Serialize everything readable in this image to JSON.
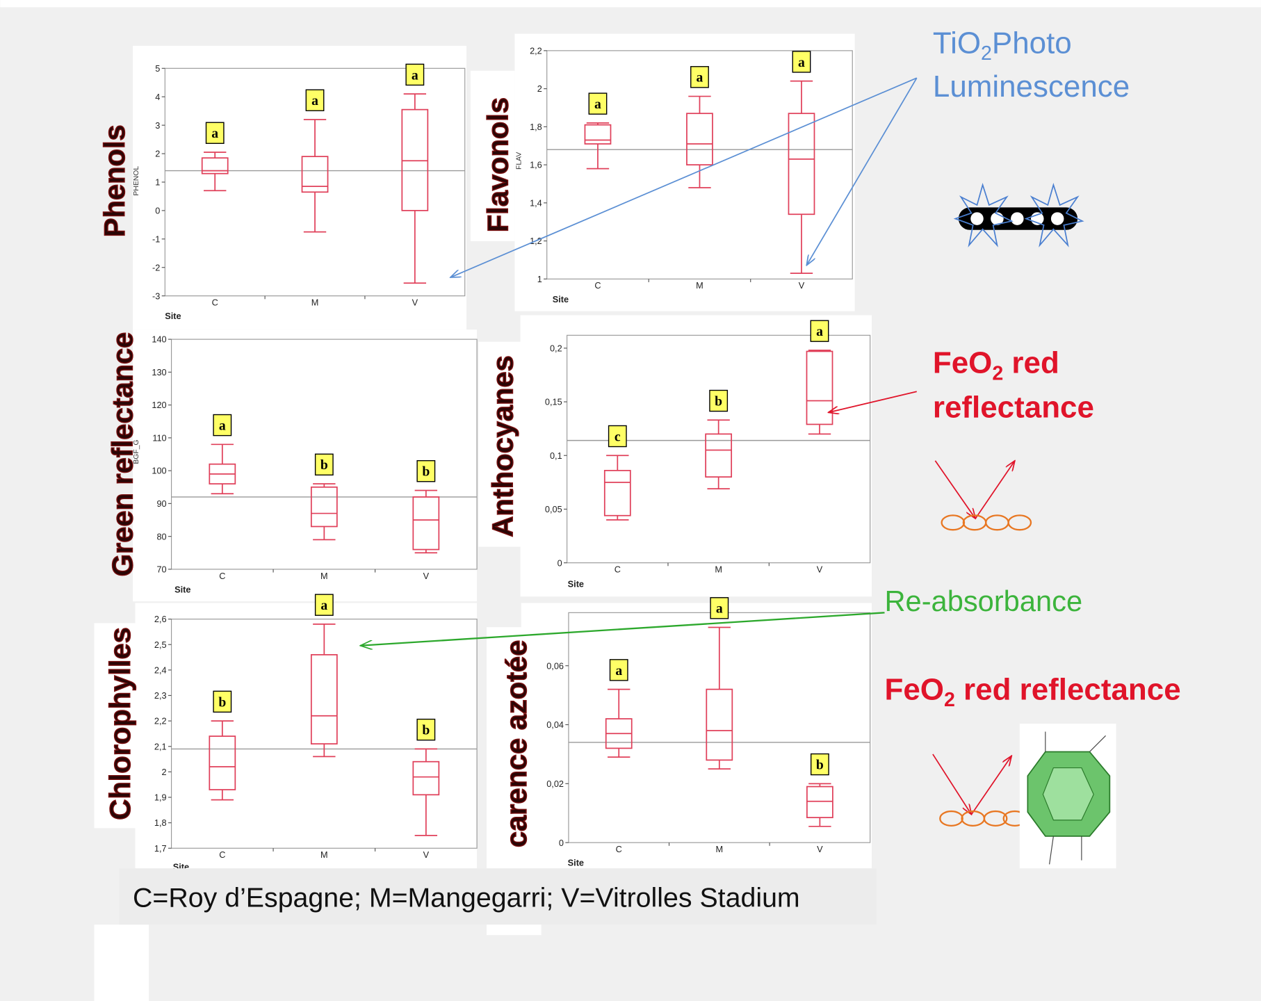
{
  "chart_data": [
    {
      "type": "box",
      "title": "Phenols",
      "y_label": "PHENOL",
      "x_label": "Site",
      "categories": [
        "C",
        "M",
        "V"
      ],
      "boxes": [
        {
          "min": 0.7,
          "q1": 1.3,
          "median": 1.4,
          "q3": 1.85,
          "max": 2.05
        },
        {
          "min": -0.75,
          "q1": 0.65,
          "median": 0.85,
          "q3": 1.9,
          "max": 3.2
        },
        {
          "min": -2.55,
          "q1": 0,
          "median": 1.75,
          "q3": 3.55,
          "max": 4.1
        }
      ],
      "groups": [
        "a",
        "a",
        "a"
      ],
      "mean": 1.4,
      "color": "#e0405a",
      "ylim": [
        -3,
        5
      ],
      "yticks": [
        -3,
        -2,
        -1,
        0,
        1,
        2,
        3,
        4,
        5
      ]
    },
    {
      "type": "box",
      "title": "Flavonols",
      "y_label": "FLAV",
      "x_label": "Site",
      "categories": [
        "C",
        "M",
        "V"
      ],
      "boxes": [
        {
          "min": 1.58,
          "q1": 1.71,
          "median": 1.73,
          "q3": 1.81,
          "max": 1.82
        },
        {
          "min": 1.48,
          "q1": 1.6,
          "median": 1.71,
          "q3": 1.87,
          "max": 1.96
        },
        {
          "min": 1.03,
          "q1": 1.34,
          "median": 1.63,
          "q3": 1.87,
          "max": 2.04
        }
      ],
      "groups": [
        "a",
        "a",
        "a"
      ],
      "mean": 1.68,
      "color": "#e0405a",
      "ylim": [
        1,
        2.2
      ],
      "yticks": [
        1,
        {
          "value": 1.2,
          "label": "1,2"
        },
        {
          "value": 1.4,
          "label": "1,4"
        },
        {
          "value": 1.6,
          "label": "1,6"
        },
        {
          "value": 1.8,
          "label": "1,8"
        },
        2,
        {
          "value": 2.2,
          "label": "2,2"
        }
      ]
    },
    {
      "type": "box",
      "title": "Green reflectance",
      "y_label": "BGF_G",
      "x_label": "Site",
      "categories": [
        "C",
        "M",
        "V"
      ],
      "boxes": [
        {
          "min": 93,
          "q1": 96,
          "median": 99,
          "q3": 102,
          "max": 108
        },
        {
          "min": 79,
          "q1": 83,
          "median": 87,
          "q3": 95,
          "max": 96
        },
        {
          "min": 75,
          "q1": 76,
          "median": 85,
          "q3": 92,
          "max": 94
        }
      ],
      "groups": [
        "a",
        "b",
        "b"
      ],
      "mean": 92,
      "color": "#e0405a",
      "ylim": [
        70,
        140
      ],
      "yticks": [
        70,
        80,
        90,
        100,
        110,
        120,
        130,
        140
      ]
    },
    {
      "type": "box",
      "title": "Anthocyanes",
      "x_label": "Site",
      "categories": [
        "C",
        "M",
        "V"
      ],
      "boxes": [
        {
          "min": 0.04,
          "q1": 0.044,
          "median": 0.075,
          "q3": 0.086,
          "max": 0.1
        },
        {
          "min": 0.069,
          "q1": 0.08,
          "median": 0.105,
          "q3": 0.12,
          "max": 0.133
        },
        {
          "min": 0.12,
          "q1": 0.129,
          "median": 0.151,
          "q3": 0.197,
          "max": 0.198
        }
      ],
      "groups": [
        "c",
        "b",
        "a"
      ],
      "mean": 0.114,
      "color": "#e0405a",
      "ylim": [
        0,
        0.212
      ],
      "yticks": [
        0,
        {
          "value": 0.05,
          "label": "0,05"
        },
        {
          "value": 0.1,
          "label": "0,1"
        },
        {
          "value": 0.15,
          "label": "0,15"
        },
        {
          "value": 0.2,
          "label": "0,2"
        }
      ]
    },
    {
      "type": "box",
      "title": "Chlorophylles",
      "x_label": "Site",
      "categories": [
        "C",
        "M",
        "V"
      ],
      "boxes": [
        {
          "min": 1.89,
          "q1": 1.93,
          "median": 2.02,
          "q3": 2.14,
          "max": 2.2
        },
        {
          "min": 2.06,
          "q1": 2.11,
          "median": 2.22,
          "q3": 2.46,
          "max": 2.58
        },
        {
          "min": 1.75,
          "q1": 1.91,
          "median": 1.98,
          "q3": 2.04,
          "max": 2.09
        }
      ],
      "groups": [
        "b",
        "a",
        "b"
      ],
      "mean": 2.09,
      "color": "#e0405a",
      "ylim": [
        1.7,
        2.6
      ],
      "yticks": [
        {
          "value": 1.7,
          "label": "1,7"
        },
        {
          "value": 1.8,
          "label": "1,8"
        },
        {
          "value": 1.9,
          "label": "1,9"
        },
        2,
        {
          "value": 2.1,
          "label": "2,1"
        },
        {
          "value": 2.2,
          "label": "2,2"
        },
        {
          "value": 2.3,
          "label": "2,3"
        },
        {
          "value": 2.4,
          "label": "2,4"
        },
        {
          "value": 2.5,
          "label": "2,5"
        },
        {
          "value": 2.6,
          "label": "2,6"
        }
      ]
    },
    {
      "type": "box",
      "title": "carence azotée",
      "x_label": "Site",
      "categories": [
        "C",
        "M",
        "V"
      ],
      "boxes": [
        {
          "min": 0.029,
          "q1": 0.032,
          "median": 0.037,
          "q3": 0.042,
          "max": 0.052
        },
        {
          "min": 0.025,
          "q1": 0.028,
          "median": 0.038,
          "q3": 0.052,
          "max": 0.073
        },
        {
          "min": 0.0055,
          "q1": 0.0085,
          "median": 0.014,
          "q3": 0.019,
          "max": 0.02
        }
      ],
      "groups": [
        "a",
        "a",
        "b"
      ],
      "mean": 0.034,
      "color": "#e0405a",
      "ylim": [
        0,
        0.078
      ],
      "yticks": [
        0,
        {
          "value": 0.02,
          "label": "0,02"
        },
        {
          "value": 0.04,
          "label": "0,04"
        },
        {
          "value": 0.06,
          "label": "0,06"
        }
      ]
    }
  ],
  "annotations": {
    "tio2": {
      "pre": "TiO",
      "sub": "2",
      "post": "Photo",
      "line2": "Luminescence"
    },
    "feo2_top": {
      "pre": "FeO",
      "sub": "2",
      "post": " red",
      "line2": "reflectance"
    },
    "reabsorbance": "Re-absorbance",
    "feo2_bottom": {
      "pre": "FeO",
      "sub": "2",
      "post": " red reflectance"
    }
  },
  "footer": "C=Roy d’Espagne;  M=Mangegarri;  V=Vitrolles  Stadium"
}
